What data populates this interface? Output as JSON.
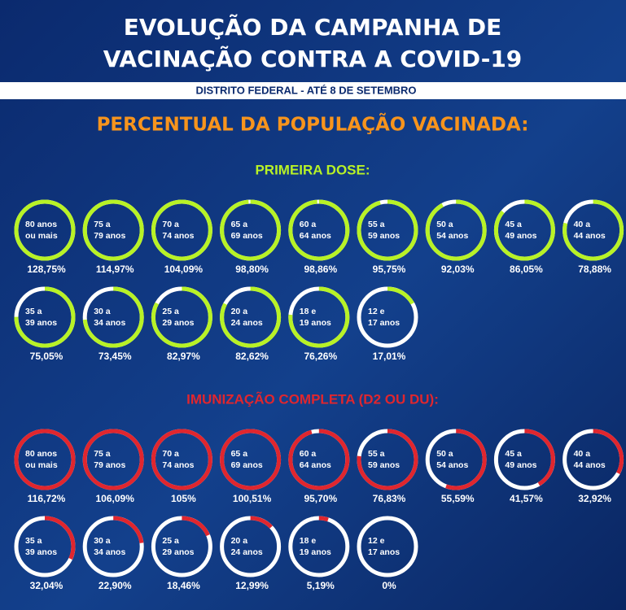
{
  "header": {
    "title": [
      "EVOLUÇÃO DA CAMPANHA DE",
      "VACINAÇÃO CONTRA A COVID-19"
    ],
    "subtitle": "DISTRITO FEDERAL - ATÉ 8 DE SETEMBRO",
    "heading": "PERCENTUAL DA POPULAÇÃO VACINADA:"
  },
  "chart_data": [
    {
      "type": "ring",
      "title": "PRIMEIRA DOSE:",
      "color": "#b8f226",
      "categories": [
        [
          "80 anos",
          "ou mais"
        ],
        [
          "75 a",
          "79 anos"
        ],
        [
          "70 a",
          "74 anos"
        ],
        [
          "65 a",
          "69 anos"
        ],
        [
          "60 a",
          "64 anos"
        ],
        [
          "55 a",
          "59 anos"
        ],
        [
          "50 a",
          "54 anos"
        ],
        [
          "45 a",
          "49 anos"
        ],
        [
          "40 a",
          "44 anos"
        ],
        [
          "35 a",
          "39 anos"
        ],
        [
          "30 a",
          "34 anos"
        ],
        [
          "25 a",
          "29 anos"
        ],
        [
          "20 a",
          "24 anos"
        ],
        [
          "18 e",
          "19 anos"
        ],
        [
          "12 e",
          "17 anos"
        ]
      ],
      "values": [
        128.75,
        114.97,
        104.09,
        98.8,
        98.86,
        95.75,
        92.03,
        86.05,
        78.88,
        75.05,
        73.45,
        82.97,
        82.62,
        76.26,
        17.01
      ],
      "value_labels": [
        "128,75%",
        "114,97%",
        "104,09%",
        "98,80%",
        "98,86%",
        "95,75%",
        "92,03%",
        "86,05%",
        "78,88%",
        "75,05%",
        "73,45%",
        "82,97%",
        "82,62%",
        "76,26%",
        "17,01%"
      ]
    },
    {
      "type": "ring",
      "title": "IMUNIZAÇÃO COMPLETA (D2 OU DU):",
      "color": "#e0262e",
      "categories": [
        [
          "80 anos",
          "ou mais"
        ],
        [
          "75 a",
          "79 anos"
        ],
        [
          "70 a",
          "74 anos"
        ],
        [
          "65 a",
          "69 anos"
        ],
        [
          "60 a",
          "64 anos"
        ],
        [
          "55 a",
          "59 anos"
        ],
        [
          "50 a",
          "54 anos"
        ],
        [
          "45 a",
          "49 anos"
        ],
        [
          "40 a",
          "44 anos"
        ],
        [
          "35 a",
          "39 anos"
        ],
        [
          "30 a",
          "34 anos"
        ],
        [
          "25 a",
          "29 anos"
        ],
        [
          "20 a",
          "24 anos"
        ],
        [
          "18 e",
          "19 anos"
        ],
        [
          "12 e",
          "17 anos"
        ]
      ],
      "values": [
        116.72,
        106.09,
        105,
        100.51,
        95.7,
        76.83,
        55.59,
        41.57,
        32.92,
        32.04,
        22.9,
        18.46,
        12.99,
        5.19,
        0
      ],
      "value_labels": [
        "116,72%",
        "106,09%",
        "105%",
        "100,51%",
        "95,70%",
        "76,83%",
        "55,59%",
        "41,57%",
        "32,92%",
        "32,04%",
        "22,90%",
        "18,46%",
        "12,99%",
        "5,19%",
        "0%"
      ]
    }
  ]
}
